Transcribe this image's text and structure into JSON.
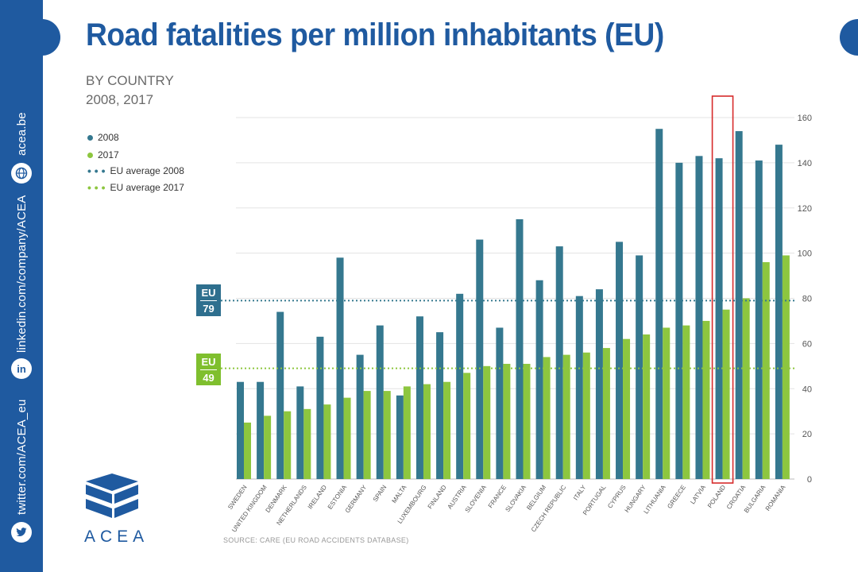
{
  "title": "Road fatalities per million inhabitants (EU)",
  "subtitle_line1": "BY COUNTRY",
  "subtitle_line2": "2008, 2017",
  "legend": {
    "s2008": "2008",
    "s2017": "2017",
    "avg2008": "EU average 2008",
    "avg2017": "EU average 2017"
  },
  "badges": {
    "eu2008_top": "EU",
    "eu2008_value": "79",
    "eu2017_top": "EU",
    "eu2017_value": "49"
  },
  "sidebar": {
    "website": "acea.be",
    "linkedin": "linkedin.com/company/ACEA",
    "twitter": "twitter.com/ACEA_eu",
    "linkedin_icon": "in"
  },
  "source": "SOURCE: CARE (EU ROAD ACCIDENTS DATABASE)",
  "logo_text": "ACEA",
  "colors": {
    "brand_blue": "#1f5aa0",
    "bar_2008": "#35788f",
    "bar_2017": "#8dc63f",
    "highlight": "#d62b2b"
  },
  "chart_data": {
    "type": "bar",
    "categories": [
      "SWEDEN",
      "UNITED KINGDOM",
      "DENMARK",
      "NETHERLANDS",
      "IRELAND",
      "ESTONIA",
      "GERMANY",
      "SPAIN",
      "MALTA",
      "LUXEMBOURG",
      "FINLAND",
      "AUSTRIA",
      "SLOVENIA",
      "FRANCE",
      "SLOVAKIA",
      "BELGIUM",
      "CZECH REPUBLIC",
      "ITALY",
      "PORTUGAL",
      "CYPRUS",
      "HUNGARY",
      "LITHUANIA",
      "GREECE",
      "LATVIA",
      "POLAND",
      "CROATIA",
      "BULGARIA",
      "ROMANIA"
    ],
    "series": [
      {
        "name": "2008",
        "color": "#35788f",
        "values": [
          43,
          43,
          74,
          41,
          63,
          98,
          55,
          68,
          37,
          72,
          65,
          82,
          106,
          67,
          115,
          88,
          103,
          81,
          84,
          105,
          99,
          155,
          140,
          143,
          142,
          154,
          141,
          148
        ]
      },
      {
        "name": "2017",
        "color": "#8dc63f",
        "values": [
          25,
          28,
          30,
          31,
          33,
          36,
          39,
          39,
          41,
          42,
          43,
          47,
          50,
          51,
          51,
          54,
          55,
          56,
          58,
          62,
          64,
          67,
          68,
          70,
          75,
          80,
          96,
          99
        ]
      }
    ],
    "reference_lines": [
      {
        "name": "EU average 2008",
        "value": 79,
        "color": "#35788f"
      },
      {
        "name": "EU average 2017",
        "value": 49,
        "color": "#8dc63f"
      }
    ],
    "highlight_category": "POLAND",
    "y_ticks": [
      0,
      20,
      40,
      60,
      80,
      100,
      120,
      140,
      160
    ],
    "ylim": [
      0,
      160
    ],
    "y_axis_side": "right",
    "grid": true,
    "legend_position": "top-left"
  }
}
